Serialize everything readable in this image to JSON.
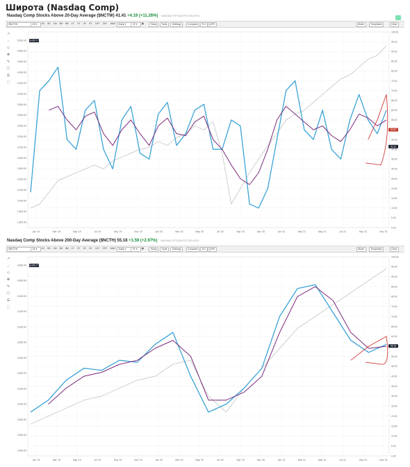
{
  "page_title": "Широта (Nasdaq Comp)",
  "colors": {
    "blue_line": "#3aa3d6",
    "purple_line": "#7a2a7a",
    "red_line": "#d23a3a",
    "price_line": "#b0b0b0",
    "annotation": "#d23a3a",
    "badge_dark": "#1c2430",
    "badge_red": "#c0392b"
  },
  "toolbar": {
    "symbol": "$NCTW",
    "period_select": "25",
    "ranges": [
      "1D",
      "5D",
      "1M",
      "3M",
      "6M",
      "1Y",
      "2Y",
      "3Y",
      "5Y",
      "10Y",
      "20Y",
      "MAX"
    ],
    "interval": "Daily",
    "interval2": "3Y",
    "buttons": [
      "Study",
      "Tools",
      "Settings",
      "Compare",
      "TLC",
      "Q/FE"
    ],
    "right_buttons": [
      "Mode",
      "Templates",
      "Clear"
    ]
  },
  "chart_data": [
    {
      "type": "line",
      "title": "Nasdaq Comp Stocks Above 20-Day Average ($NCTW)",
      "last_value": "41.41",
      "change": "+4.19 (+11.26%)",
      "feed": "NASDAQ ETFS/QUOTE DELAYED",
      "badges": [
        "6,055.77",
        "50.00",
        "41.41"
      ],
      "x_tick_labels": [
        "Jan '19",
        "Mar '19",
        "May '19",
        "Jul '19",
        "Sep '19",
        "Nov '19",
        "Jan '20",
        "Mar '20",
        "May '20",
        "Jul '20",
        "Sep '20",
        "Nov '20",
        "Jan '21",
        "Mar '21",
        "May '21",
        "Jul '21",
        "Sep '21",
        "Nov '21"
      ],
      "left_axis_labels": [
        "1,600.00",
        "1,800.00",
        "2,000.00",
        "2,200.00",
        "2,400.00",
        "2,600.00",
        "2,800.00",
        "3,000.00",
        "3,200.00",
        "3,400.00",
        "3,600.00",
        "3,800.00",
        "4,000.00",
        "4,200.00",
        "4,400.00",
        "4,600.00",
        "4,800.00",
        "5,000.00"
      ],
      "right_axis_labels": [
        "0.00",
        "5.00",
        "10.00",
        "15.00",
        "20.00",
        "25.00",
        "30.00",
        "35.00",
        "40.00",
        "45.00",
        "50.00",
        "55.00",
        "60.00",
        "65.00",
        "70.00",
        "75.00",
        "80.00",
        "85.00",
        "90.00",
        "95.00",
        "100.00"
      ],
      "ylim": [
        0,
        100
      ],
      "x": [
        0,
        4,
        8,
        12,
        16,
        20,
        24,
        28,
        32,
        36,
        40,
        44,
        48,
        52,
        56,
        60,
        64,
        68,
        72,
        76,
        80,
        84,
        88,
        92,
        96,
        100,
        104,
        108,
        112,
        116,
        120,
        124,
        128,
        132,
        136,
        140,
        144,
        148,
        152,
        156
      ],
      "series": [
        {
          "values": [
            18,
            70,
            75,
            82,
            45,
            40,
            60,
            65,
            40,
            30,
            55,
            62,
            38,
            35,
            58,
            64,
            42,
            48,
            60,
            63,
            40,
            40,
            55,
            52,
            12,
            10,
            20,
            45,
            70,
            75,
            50,
            45,
            60,
            40,
            35,
            55,
            68,
            55,
            48,
            60
          ]
        },
        {
          "values": [
            null,
            null,
            60,
            62,
            55,
            50,
            57,
            59,
            48,
            42,
            50,
            55,
            48,
            42,
            52,
            56,
            48,
            47,
            54,
            57,
            45,
            40,
            32,
            25,
            22,
            28,
            40,
            55,
            62,
            58,
            54,
            50,
            52,
            47,
            44,
            50,
            58,
            56,
            52,
            55
          ]
        },
        {
          "values": [
            null,
            null,
            null,
            null,
            null,
            null,
            null,
            null,
            null,
            null,
            null,
            null,
            null,
            null,
            null,
            null,
            null,
            null,
            null,
            null,
            null,
            null,
            null,
            null,
            null,
            null,
            null,
            null,
            null,
            null,
            null,
            null,
            null,
            null,
            null,
            null,
            null,
            45,
            55,
            68
          ]
        },
        {
          "values": [
            10,
            12,
            18,
            24,
            26,
            28,
            30,
            32,
            30,
            34,
            36,
            38,
            40,
            41,
            44,
            42,
            46,
            48,
            52,
            50,
            54,
            38,
            12,
            20,
            28,
            35,
            42,
            48,
            55,
            58,
            60,
            64,
            68,
            72,
            76,
            78,
            82,
            86,
            88,
            93
          ]
        }
      ]
    },
    {
      "type": "line",
      "title": "Nasdaq Comp Stocks Above 200-Day Average ($NCTH)",
      "last_value": "55.18",
      "change": "+1.59 (+2.97%)",
      "feed": "NASDAQ ETFS/QUOTE DELAYED",
      "badges": [
        "6,055.77",
        "55.18"
      ],
      "x_tick_labels": [
        "Jan '19",
        "Mar '19",
        "May '19",
        "Jul '19",
        "Sep '19",
        "Nov '19",
        "Jan '20",
        "Mar '20",
        "May '20",
        "Jul '20",
        "Sep '20",
        "Nov '20",
        "Jan '21",
        "Mar '21",
        "May '21",
        "Jul '21",
        "Sep '21",
        "Nov '21"
      ],
      "left_axis_labels": [
        "2,400.00",
        "2,600.00",
        "2,800.00",
        "3,000.00",
        "3,200.00",
        "3,400.00",
        "3,600.00",
        "3,800.00",
        "4,000.00",
        "4,200.00",
        "4,400.00",
        "4,600.00",
        "4,800.00"
      ],
      "right_axis_labels": [
        "0.00",
        "5.00",
        "10.00",
        "15.00",
        "20.00",
        "25.00",
        "30.00",
        "35.00",
        "40.00",
        "45.00",
        "50.00",
        "55.00",
        "60.00",
        "65.00",
        "70.00",
        "75.00",
        "80.00",
        "85.00",
        "90.00",
        "95.00",
        "100.00"
      ],
      "ylim": [
        0,
        100
      ],
      "x": [
        0,
        8,
        16,
        24,
        32,
        40,
        48,
        56,
        64,
        72,
        80,
        88,
        96,
        104,
        112,
        120,
        128,
        136,
        144,
        152,
        160
      ],
      "series": [
        {
          "values": [
            22,
            28,
            38,
            44,
            43,
            48,
            47,
            56,
            62,
            40,
            22,
            26,
            34,
            44,
            70,
            84,
            86,
            72,
            58,
            52,
            56
          ]
        },
        {
          "values": [
            null,
            26,
            34,
            40,
            42,
            46,
            48,
            54,
            58,
            50,
            28,
            28,
            32,
            40,
            62,
            80,
            85,
            78,
            62,
            54,
            55
          ]
        },
        {
          "values": [
            null,
            null,
            null,
            null,
            null,
            null,
            null,
            null,
            null,
            null,
            null,
            null,
            null,
            null,
            null,
            null,
            null,
            null,
            48,
            55,
            60
          ]
        },
        {
          "values": [
            16,
            20,
            24,
            28,
            30,
            34,
            38,
            40,
            46,
            48,
            30,
            22,
            34,
            44,
            54,
            64,
            70,
            76,
            82,
            88,
            94
          ]
        }
      ]
    }
  ]
}
